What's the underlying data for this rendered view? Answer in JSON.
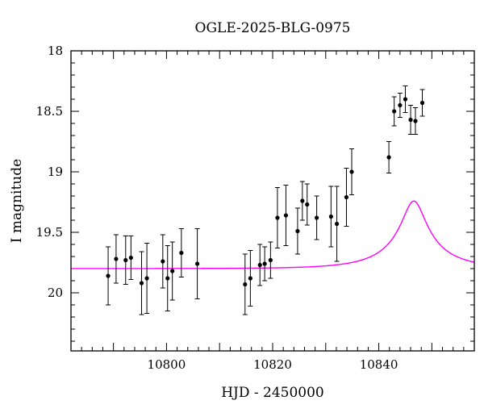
{
  "chart_data": {
    "type": "scatter",
    "title": "OGLE-2025-BLG-0975",
    "xlabel": "HJD - 2450000",
    "ylabel": "I magnitude",
    "xlim": [
      10782,
      10858
    ],
    "ylim": [
      20.48,
      18.0
    ],
    "y_inverted": true,
    "grid": false,
    "xticks": [
      10800,
      10820,
      10840
    ],
    "xtick_labels": [
      "10800",
      "10820",
      "10840"
    ],
    "yticks": [
      18,
      18.5,
      19,
      19.5,
      20
    ],
    "ytick_labels": [
      "18",
      "18.5",
      "19",
      "19.5",
      "20"
    ],
    "colors": {
      "points": "#000000",
      "model": "#ff00ff",
      "frame": "#000000"
    },
    "series": [
      {
        "kind": "points_with_errorbars",
        "points": [
          {
            "x": 10789.0,
            "y": 19.86,
            "err": 0.24
          },
          {
            "x": 10790.5,
            "y": 19.72,
            "err": 0.2
          },
          {
            "x": 10792.3,
            "y": 19.73,
            "err": 0.2
          },
          {
            "x": 10793.3,
            "y": 19.71,
            "err": 0.18
          },
          {
            "x": 10795.3,
            "y": 19.92,
            "err": 0.26
          },
          {
            "x": 10796.3,
            "y": 19.88,
            "err": 0.29
          },
          {
            "x": 10799.3,
            "y": 19.74,
            "err": 0.22
          },
          {
            "x": 10800.2,
            "y": 19.88,
            "err": 0.27
          },
          {
            "x": 10801.1,
            "y": 19.82,
            "err": 0.24
          },
          {
            "x": 10802.8,
            "y": 19.67,
            "err": 0.2
          },
          {
            "x": 10805.8,
            "y": 19.76,
            "err": 0.29
          },
          {
            "x": 10814.8,
            "y": 19.93,
            "err": 0.25
          },
          {
            "x": 10815.8,
            "y": 19.88,
            "err": 0.23
          },
          {
            "x": 10817.6,
            "y": 19.77,
            "err": 0.17
          },
          {
            "x": 10818.5,
            "y": 19.76,
            "err": 0.14
          },
          {
            "x": 10819.6,
            "y": 19.73,
            "err": 0.15
          },
          {
            "x": 10820.9,
            "y": 19.38,
            "err": 0.25
          },
          {
            "x": 10822.5,
            "y": 19.36,
            "err": 0.25
          },
          {
            "x": 10824.7,
            "y": 19.49,
            "err": 0.19
          },
          {
            "x": 10825.6,
            "y": 19.24,
            "err": 0.16
          },
          {
            "x": 10826.5,
            "y": 19.27,
            "err": 0.17
          },
          {
            "x": 10828.3,
            "y": 19.38,
            "err": 0.18
          },
          {
            "x": 10831.0,
            "y": 19.37,
            "err": 0.25
          },
          {
            "x": 10832.1,
            "y": 19.43,
            "err": 0.31
          },
          {
            "x": 10833.9,
            "y": 19.21,
            "err": 0.24
          },
          {
            "x": 10834.9,
            "y": 19.0,
            "err": 0.19
          },
          {
            "x": 10841.9,
            "y": 18.88,
            "err": 0.13
          },
          {
            "x": 10842.9,
            "y": 18.5,
            "err": 0.12
          },
          {
            "x": 10844.0,
            "y": 18.45,
            "err": 0.1
          },
          {
            "x": 10845.0,
            "y": 18.4,
            "err": 0.11
          },
          {
            "x": 10846.0,
            "y": 18.57,
            "err": 0.12
          },
          {
            "x": 10846.9,
            "y": 18.58,
            "err": 0.11
          },
          {
            "x": 10848.2,
            "y": 18.43,
            "err": 0.11
          }
        ]
      },
      {
        "kind": "model_curve",
        "model": "pspl",
        "t0": 10846.6,
        "u0": 0.2,
        "tE": 11,
        "baseline_mag": 19.8,
        "fs": 0.165
      }
    ]
  }
}
